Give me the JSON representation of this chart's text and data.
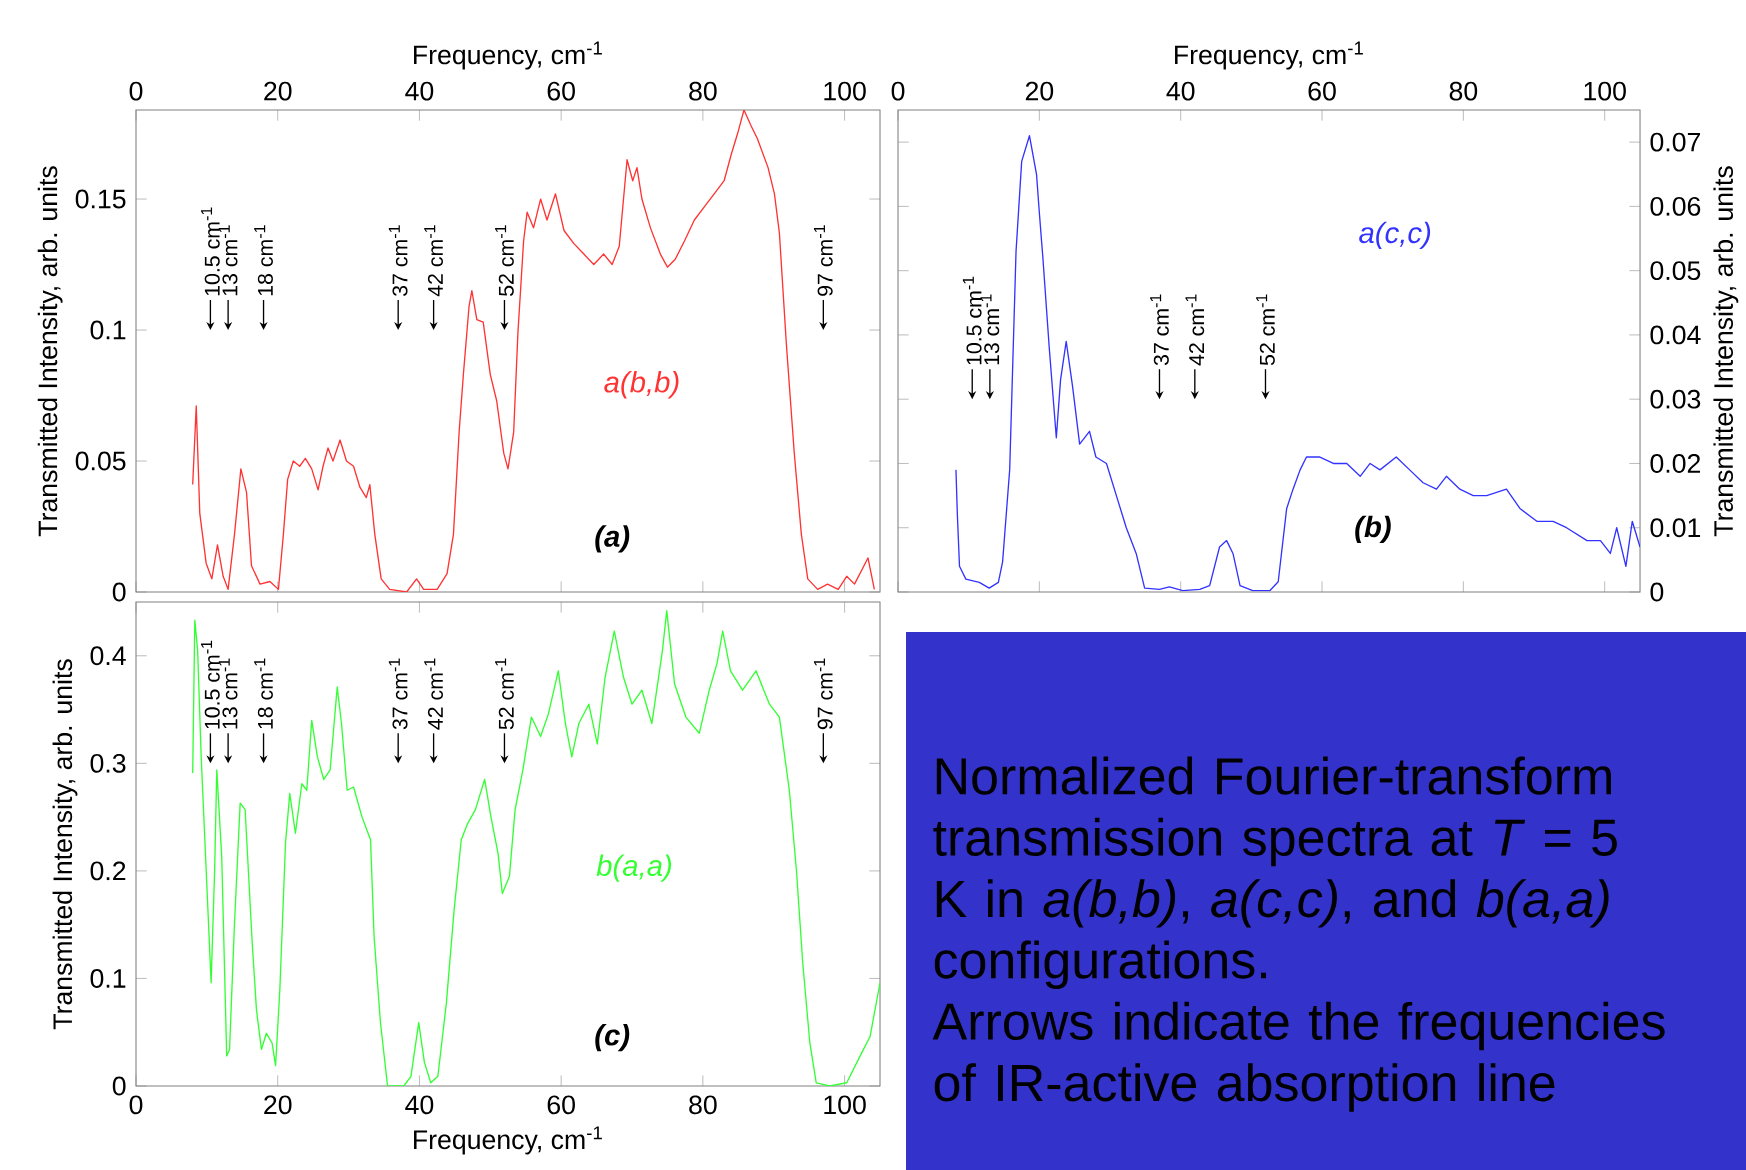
{
  "chart_data": [
    {
      "type": "line",
      "xlabel": "Frequency, cm$^{-1}$",
      "ylabel": "Transmitted Intensity, arb. units",
      "xlim": [
        0,
        105
      ],
      "xticks": [
        0,
        20,
        40,
        60,
        80,
        100
      ],
      "ylim": [
        0,
        0.184
      ],
      "yticks": [
        0,
        0.05,
        0.1,
        0.15
      ],
      "series": [
        {
          "name": "a(b,b)",
          "color": "#ff3333",
          "x": [
            8.0,
            8.5,
            9.0,
            9.9,
            10.7,
            11.5,
            12.3,
            13.0,
            13.9,
            14.8,
            15.6,
            16.3,
            17.5,
            18.9,
            20.1,
            20.8,
            21.4,
            22.2,
            23.1,
            23.9,
            24.8,
            25.7,
            26.4,
            27.1,
            27.8,
            28.8,
            29.7,
            30.7,
            31.6,
            32.5,
            33.0,
            33.7,
            34.6,
            35.8,
            38.2,
            39.6,
            40.6,
            42.5,
            43.9,
            44.8,
            45.6,
            46.2,
            47.0,
            47.4,
            48.1,
            49.0,
            50.0,
            50.9,
            51.9,
            52.5,
            53.3,
            53.9,
            54.7,
            55.2,
            56.1,
            57.1,
            58.0,
            59.2,
            60.4,
            61.8,
            63.2,
            64.6,
            66.0,
            67.2,
            68.2,
            68.8,
            69.3,
            70.1,
            70.7,
            71.4,
            72.6,
            74.0,
            75.0,
            76.1,
            77.4,
            78.8,
            80.2,
            81.6,
            83.0,
            84.0,
            84.9,
            85.8,
            86.8,
            87.7,
            89.2,
            90.1,
            90.8,
            91.8,
            92.9,
            93.9,
            94.8,
            96.2,
            97.6,
            99.1,
            100.3,
            101.4,
            103.3,
            104.2
          ],
          "values": [
            0.041,
            0.071,
            0.03,
            0.011,
            0.005,
            0.018,
            0.006,
            0.001,
            0.022,
            0.047,
            0.038,
            0.01,
            0.003,
            0.004,
            0.001,
            0.022,
            0.043,
            0.05,
            0.048,
            0.051,
            0.047,
            0.039,
            0.048,
            0.055,
            0.05,
            0.058,
            0.05,
            0.048,
            0.04,
            0.036,
            0.041,
            0.022,
            0.005,
            0.001,
            0.0,
            0.005,
            0.001,
            0.001,
            0.007,
            0.022,
            0.061,
            0.083,
            0.109,
            0.115,
            0.104,
            0.103,
            0.083,
            0.073,
            0.053,
            0.047,
            0.061,
            0.099,
            0.134,
            0.145,
            0.139,
            0.15,
            0.142,
            0.152,
            0.138,
            0.133,
            0.129,
            0.125,
            0.129,
            0.125,
            0.132,
            0.15,
            0.165,
            0.157,
            0.162,
            0.15,
            0.139,
            0.129,
            0.124,
            0.127,
            0.134,
            0.142,
            0.147,
            0.152,
            0.157,
            0.167,
            0.175,
            0.184,
            0.178,
            0.173,
            0.162,
            0.152,
            0.137,
            0.094,
            0.053,
            0.022,
            0.005,
            0.001,
            0.003,
            0.001,
            0.006,
            0.003,
            0.013,
            0.001
          ]
        }
      ],
      "annotations": [
        {
          "text": "10.5 cm$^{-1}$",
          "x": 10.5,
          "y": 0.1
        },
        {
          "text": "13 cm$^{-1}$",
          "x": 13,
          "y": 0.1
        },
        {
          "text": "18 cm$^{-1}$",
          "x": 18,
          "y": 0.1
        },
        {
          "text": "37 cm$^{-1}$",
          "x": 37,
          "y": 0.1
        },
        {
          "text": "42 cm$^{-1}$",
          "x": 42,
          "y": 0.1
        },
        {
          "text": "52 cm$^{-1}$",
          "x": 52,
          "y": 0.1
        },
        {
          "text": "97 cm$^{-1}$",
          "x": 97,
          "y": 0.1
        },
        "(a)"
      ]
    },
    {
      "type": "line",
      "xlabel": "Frequency, cm$^{-1}$",
      "ylabel": "Transmitted Intensity, arb. units",
      "xlim": [
        0,
        105
      ],
      "xticks": [
        0,
        20,
        40,
        60,
        80,
        100
      ],
      "ylim": [
        0,
        0.075
      ],
      "yticks": [
        0,
        0.01,
        0.02,
        0.03,
        0.04,
        0.05,
        0.06,
        0.07
      ],
      "series": [
        {
          "name": "a(c,c)",
          "color": "#3333ff",
          "x": [
            8.2,
            8.4,
            8.7,
            9.6,
            11.5,
            12.9,
            14.2,
            14.8,
            15.8,
            16.7,
            17.5,
            18.0,
            18.6,
            19.1,
            19.6,
            20.0,
            20.5,
            21.4,
            22.4,
            23.0,
            23.8,
            24.7,
            25.7,
            27.1,
            28.0,
            29.5,
            30.9,
            32.3,
            33.7,
            34.9,
            37.0,
            38.4,
            40.3,
            42.7,
            44.1,
            45.5,
            46.5,
            47.4,
            48.4,
            50.2,
            52.6,
            53.8,
            55.0,
            55.9,
            56.9,
            57.8,
            59.7,
            61.6,
            63.5,
            65.4,
            66.8,
            68.2,
            70.5,
            72.4,
            74.3,
            76.2,
            77.6,
            79.5,
            81.4,
            83.3,
            86.1,
            88.0,
            90.4,
            92.7,
            94.6,
            97.5,
            99.4,
            100.8,
            101.7,
            103.0,
            103.9,
            105.0
          ],
          "values": [
            0.019,
            0.012,
            0.004,
            0.002,
            0.0015,
            0.0006,
            0.0015,
            0.0047,
            0.019,
            0.053,
            0.067,
            null,
            0.071,
            null,
            0.065,
            0.059,
            0.052,
            0.038,
            0.024,
            0.033,
            0.039,
            0.032,
            0.023,
            0.025,
            0.021,
            0.02,
            0.015,
            0.01,
            0.006,
            0.0006,
            0.0004,
            0.0008,
            0.0002,
            0.0004,
            0.001,
            0.007,
            0.008,
            0.006,
            0.001,
            0.0002,
            0.0002,
            0.0016,
            0.013,
            0.016,
            0.019,
            0.021,
            0.021,
            0.02,
            0.02,
            0.018,
            0.02,
            0.019,
            0.021,
            0.019,
            0.017,
            0.016,
            0.018,
            0.016,
            0.015,
            0.015,
            0.016,
            0.013,
            0.011,
            0.011,
            0.01,
            0.008,
            0.008,
            0.006,
            0.01,
            0.004,
            0.011,
            0.007
          ]
        }
      ],
      "annotations": [
        {
          "text": "10.5 cm$^{-1}$",
          "x": 10.5,
          "y": 0.03
        },
        {
          "text": "13 cm$^{-1}$",
          "x": 13,
          "y": 0.03
        },
        {
          "text": "37 cm$^{-1}$",
          "x": 37,
          "y": 0.03
        },
        {
          "text": "42 cm$^{-1}$",
          "x": 42,
          "y": 0.03
        },
        {
          "text": "52 cm$^{-1}$",
          "x": 52,
          "y": 0.03
        },
        "(b)"
      ]
    },
    {
      "type": "line",
      "xlabel": "Frequency, cm$^{-1}$",
      "ylabel": "Transmitted Intensity, arb. units",
      "xlim": [
        0,
        105
      ],
      "xticks": [
        0,
        20,
        40,
        60,
        80,
        100
      ],
      "ylim": [
        0,
        0.45
      ],
      "yticks": [
        0,
        0.1,
        0.2,
        0.3,
        0.4
      ],
      "series": [
        {
          "name": "b(a,a)",
          "color": "#33ff33",
          "x": [
            8.0,
            8.3,
            8.7,
            9.2,
            9.9,
            10.6,
            11.1,
            11.4,
            12.1,
            12.8,
            13.2,
            13.9,
            14.7,
            15.4,
            16.4,
            17.0,
            17.7,
            18.4,
            19.2,
            19.7,
            20.3,
            21.1,
            21.7,
            22.5,
            23.4,
            24.1,
            24.8,
            25.6,
            26.5,
            27.4,
            28.4,
            29.0,
            29.8,
            30.7,
            31.9,
            33.1,
            33.6,
            34.5,
            35.5,
            37.8,
            38.8,
            39.9,
            40.7,
            41.6,
            42.6,
            43.8,
            44.9,
            45.9,
            46.8,
            47.9,
            49.2,
            50.1,
            51.1,
            51.7,
            52.7,
            53.5,
            54.6,
            55.8,
            57.1,
            58.2,
            59.6,
            60.6,
            61.5,
            62.5,
            63.9,
            65.1,
            66.2,
            67.5,
            68.8,
            70.0,
            71.4,
            72.8,
            74.3,
            74.9,
            76.0,
            77.6,
            79.5,
            80.9,
            82.0,
            82.8,
            83.9,
            85.6,
            87.5,
            89.4,
            90.8,
            92.2,
            93.2,
            94.1,
            95.1,
            96.0,
            97.9,
            100.3,
            102.2,
            103.6,
            105.0
          ],
          "values": [
            0.291,
            0.433,
            0.405,
            0.306,
            0.201,
            0.096,
            0.201,
            0.294,
            0.213,
            0.028,
            0.034,
            0.151,
            0.263,
            0.257,
            0.133,
            0.071,
            0.034,
            0.049,
            0.04,
            0.019,
            0.09,
            0.226,
            0.272,
            0.235,
            0.281,
            0.275,
            0.34,
            0.306,
            0.285,
            0.294,
            0.371,
            0.337,
            0.275,
            0.278,
            0.25,
            0.229,
            0.139,
            0.059,
            0.0,
            0.0,
            0.009,
            0.059,
            0.022,
            0.003,
            0.009,
            0.077,
            0.164,
            0.229,
            0.244,
            0.257,
            0.285,
            0.25,
            0.216,
            0.179,
            0.195,
            0.257,
            0.294,
            0.343,
            0.325,
            0.346,
            0.386,
            0.337,
            0.306,
            0.337,
            0.355,
            0.318,
            0.38,
            0.423,
            0.38,
            0.355,
            0.368,
            0.337,
            0.405,
            0.442,
            0.374,
            0.343,
            0.328,
            0.368,
            0.393,
            0.423,
            0.386,
            0.368,
            0.386,
            0.355,
            0.343,
            0.275,
            0.201,
            0.114,
            0.04,
            0.003,
            0.0,
            0.003,
            0.028,
            0.046,
            0.096
          ]
        }
      ],
      "annotations": [
        {
          "text": "10.5 cm$^{-1}$",
          "x": 10.5,
          "y": 0.3
        },
        {
          "text": "13 cm$^{-1}$",
          "x": 13,
          "y": 0.3
        },
        {
          "text": "18 cm$^{-1}$",
          "x": 18,
          "y": 0.3
        },
        {
          "text": "37 cm$^{-1}$",
          "x": 37,
          "y": 0.3
        },
        {
          "text": "42 cm$^{-1}$",
          "x": 42,
          "y": 0.3
        },
        {
          "text": "52 cm$^{-1}$",
          "x": 52,
          "y": 0.3
        },
        {
          "text": "97 cm$^{-1}$",
          "x": 97,
          "y": 0.3
        },
        "(c)"
      ]
    },
    {
      "type": "other",
      "annotations": [
        "Normalized Fourier-transform transmission spectra at *T* = 5 K in *a(b,b)*, *a(c,c)*, and *b(a,a)* configurations.",
        "Arrows indicate the frequencies of IR-active absorption line"
      ]
    }
  ]
}
